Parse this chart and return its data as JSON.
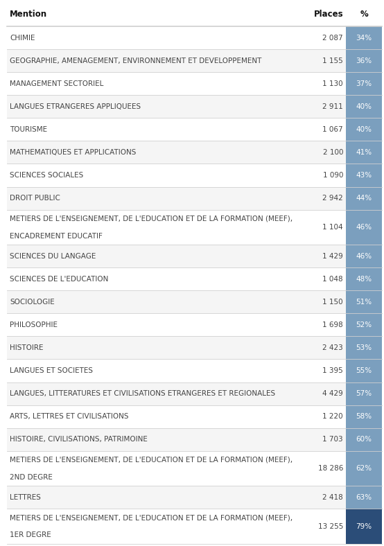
{
  "header": [
    "Mention",
    "Places",
    "%"
  ],
  "rows": [
    [
      "CHIMIE",
      "2 087",
      "34%"
    ],
    [
      "GEOGRAPHIE, AMENAGEMENT, ENVIRONNEMENT ET DEVELOPPEMENT",
      "1 155",
      "36%"
    ],
    [
      "MANAGEMENT SECTORIEL",
      "1 130",
      "37%"
    ],
    [
      "LANGUES ETRANGERES APPLIQUEES",
      "2 911",
      "40%"
    ],
    [
      "TOURISME",
      "1 067",
      "40%"
    ],
    [
      "MATHEMATIQUES ET APPLICATIONS",
      "2 100",
      "41%"
    ],
    [
      "SCIENCES SOCIALES",
      "1 090",
      "43%"
    ],
    [
      "DROIT PUBLIC",
      "2 942",
      "44%"
    ],
    [
      "METIERS DE L'ENSEIGNEMENT, DE L'EDUCATION ET DE LA FORMATION (MEEF),\nENCADREMENT EDUCATIF",
      "1 104",
      "46%"
    ],
    [
      "SCIENCES DU LANGAGE",
      "1 429",
      "46%"
    ],
    [
      "SCIENCES DE L'EDUCATION",
      "1 048",
      "48%"
    ],
    [
      "SOCIOLOGIE",
      "1 150",
      "51%"
    ],
    [
      "PHILOSOPHIE",
      "1 698",
      "52%"
    ],
    [
      "HISTOIRE",
      "2 423",
      "53%"
    ],
    [
      "LANGUES ET SOCIETES",
      "1 395",
      "55%"
    ],
    [
      "LANGUES, LITTERATURES ET CIVILISATIONS ETRANGERES ET REGIONALES",
      "4 429",
      "57%"
    ],
    [
      "ARTS, LETTRES ET CIVILISATIONS",
      "1 220",
      "58%"
    ],
    [
      "HISTOIRE, CIVILISATIONS, PATRIMOINE",
      "1 703",
      "60%"
    ],
    [
      "METIERS DE L'ENSEIGNEMENT, DE L'EDUCATION ET DE LA FORMATION (MEEF),\n2ND DEGRE",
      "18 286",
      "62%"
    ],
    [
      "LETTRES",
      "2 418",
      "63%"
    ],
    [
      "METIERS DE L'ENSEIGNEMENT, DE L'EDUCATION ET DE LA FORMATION (MEEF),\n1ER DEGRE",
      "13 255",
      "79%"
    ]
  ],
  "pct_col_normal_bg": "#7b9fbe",
  "pct_col_last_bg": "#2b4d78",
  "pct_text_color": "#ffffff",
  "cell_text_color": "#444444",
  "header_text_color": "#111111",
  "row_bg_white": "#ffffff",
  "row_bg_gray": "#f5f5f5",
  "border_color": "#d0d0d0",
  "fig_bg": "#ffffff",
  "header_font_size": 8.5,
  "cell_font_size": 7.5
}
